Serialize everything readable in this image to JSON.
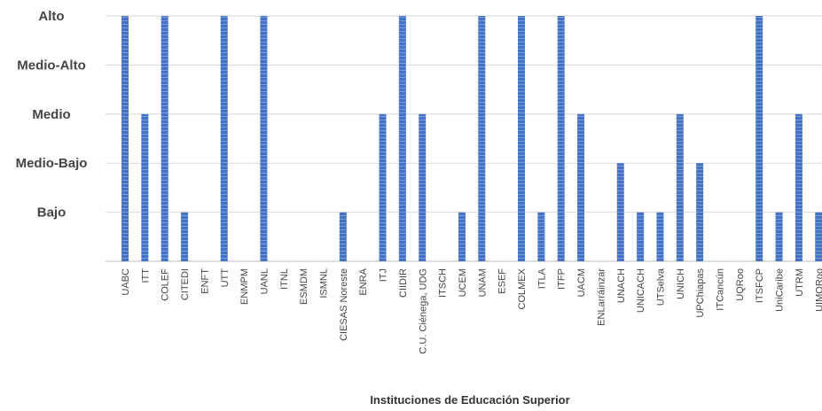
{
  "chart_data": {
    "type": "bar",
    "xlabel": "Instituciones de Educación Superior",
    "ylabel": "",
    "y_levels": [
      "Bajo",
      "Medio-Bajo",
      "Medio",
      "Medio-Alto",
      "Alto"
    ],
    "ylim": [
      0,
      5
    ],
    "grid": true,
    "legend": "none",
    "bar_color": "#4472C4",
    "categories": [
      "UABC",
      "ITT",
      "COLEF",
      "CITEDI",
      "ENFT",
      "UTT",
      "ENMPM",
      "UANL",
      "ITNL",
      "ESMDM",
      "ISMNL",
      "CIESAS Noreste",
      "ENRA",
      "ITJ",
      "CIIDIR",
      "C.U. Ciénega, UDG",
      "ITSCH",
      "UCEM",
      "UNAM",
      "ESEF",
      "COLMEX",
      "ITLA",
      "ITFP",
      "UACM",
      "ENLarráinzar",
      "UNACH",
      "UNICACH",
      "UTSelva",
      "UNICH",
      "UPChiapas",
      "ITCancún",
      "UQRoo",
      "ITSFCP",
      "UniCaribe",
      "UTRM",
      "UIMQRoo"
    ],
    "values": [
      5,
      3,
      5,
      1,
      0,
      5,
      0,
      5,
      0,
      0,
      0,
      1,
      0,
      3,
      5,
      3,
      0,
      1,
      5,
      0,
      5,
      1,
      5,
      3,
      0,
      2,
      1,
      1,
      3,
      2,
      0,
      0,
      5,
      1,
      3,
      1
    ]
  }
}
